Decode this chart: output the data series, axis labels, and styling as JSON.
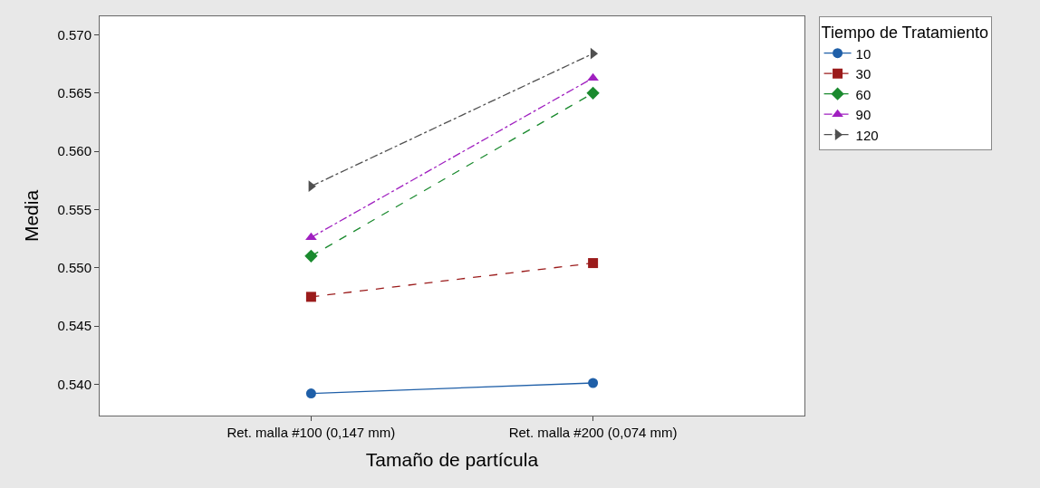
{
  "chart_data": {
    "type": "line",
    "xlabel": "Tamaño de partícula",
    "ylabel": "Media",
    "legend_title": "Tiempo de Tratamiento",
    "categories": [
      "Ret. malla #100 (0,147 mm)",
      "Ret. malla #200 (0,074 mm)"
    ],
    "series": [
      {
        "name": "10",
        "color": "#1f5fa8",
        "values": [
          0.5392,
          0.5401
        ],
        "marker": "circle",
        "line_style": "solid"
      },
      {
        "name": "30",
        "color": "#9b1b1b",
        "values": [
          0.5475,
          0.5504
        ],
        "marker": "square",
        "line_style": "dashed"
      },
      {
        "name": "60",
        "color": "#1a8a2e",
        "values": [
          0.551,
          0.565
        ],
        "marker": "diamond",
        "line_style": "dashed"
      },
      {
        "name": "90",
        "color": "#a020c0",
        "values": [
          0.5526,
          0.5663
        ],
        "marker": "triangle",
        "line_style": "dashdot"
      },
      {
        "name": "120",
        "color": "#505050",
        "values": [
          0.557,
          0.5684
        ],
        "marker": "triangle-right",
        "line_style": "dashdot"
      }
    ],
    "ylim": [
      0.5373,
      0.5716
    ],
    "yticks": [
      {
        "value": 0.54,
        "label": "0.540"
      },
      {
        "value": 0.545,
        "label": "0.545"
      },
      {
        "value": 0.55,
        "label": "0.550"
      },
      {
        "value": 0.555,
        "label": "0.555"
      },
      {
        "value": 0.56,
        "label": "0.560"
      },
      {
        "value": 0.565,
        "label": "0.565"
      },
      {
        "value": 0.57,
        "label": "0.570"
      }
    ],
    "legend": "top right"
  }
}
